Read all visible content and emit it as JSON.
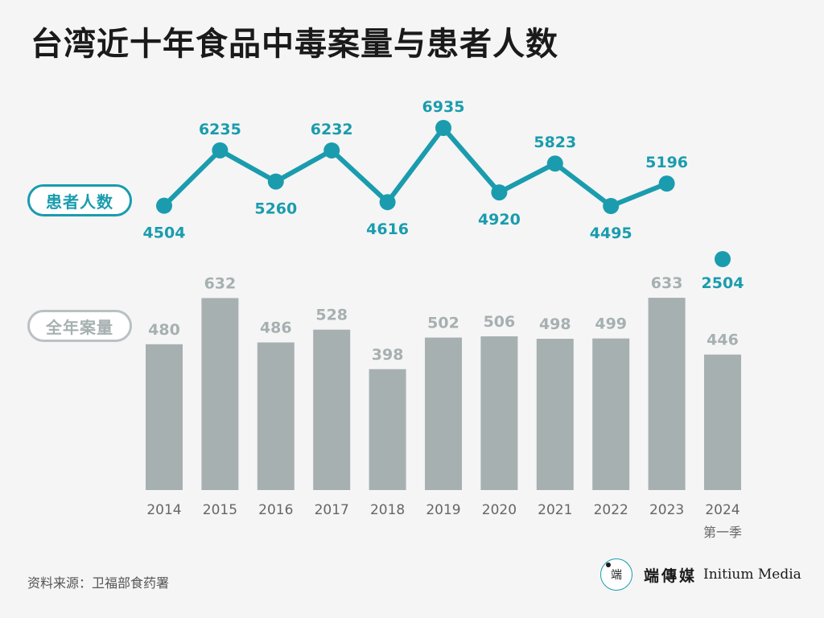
{
  "title": "台湾近十年食品中毒案量与患者人数",
  "series_labels": {
    "patients": "患者人数",
    "cases": "全年案量"
  },
  "source": "资料来源：卫福部食药署",
  "logo": {
    "mark": "端",
    "name_cn": "端傳媒",
    "name_en": "Initium Media"
  },
  "colors": {
    "line": "#1a9cae",
    "bar": "#a7b0b1",
    "case_label": "#a7b0b1",
    "axis_text": "#666666"
  },
  "chart_data": {
    "type": "bar+line",
    "categories": [
      "2014",
      "2015",
      "2016",
      "2017",
      "2018",
      "2019",
      "2020",
      "2021",
      "2022",
      "2023",
      "2024"
    ],
    "category_sublabels": [
      "",
      "",
      "",
      "",
      "",
      "",
      "",
      "",
      "",
      "",
      "第一季"
    ],
    "series": [
      {
        "name": "全年案量",
        "type": "bar",
        "values": [
          480,
          632,
          486,
          528,
          398,
          502,
          506,
          498,
          499,
          633,
          446
        ]
      },
      {
        "name": "患者人数",
        "type": "line",
        "values": [
          4504,
          6235,
          5260,
          6232,
          4616,
          6935,
          4920,
          5823,
          4495,
          5196,
          2504
        ],
        "line_break_before_last": true
      }
    ],
    "title": "台湾近十年食品中毒案量与患者人数",
    "xlabel": "",
    "ylabel": "",
    "grid": false
  }
}
